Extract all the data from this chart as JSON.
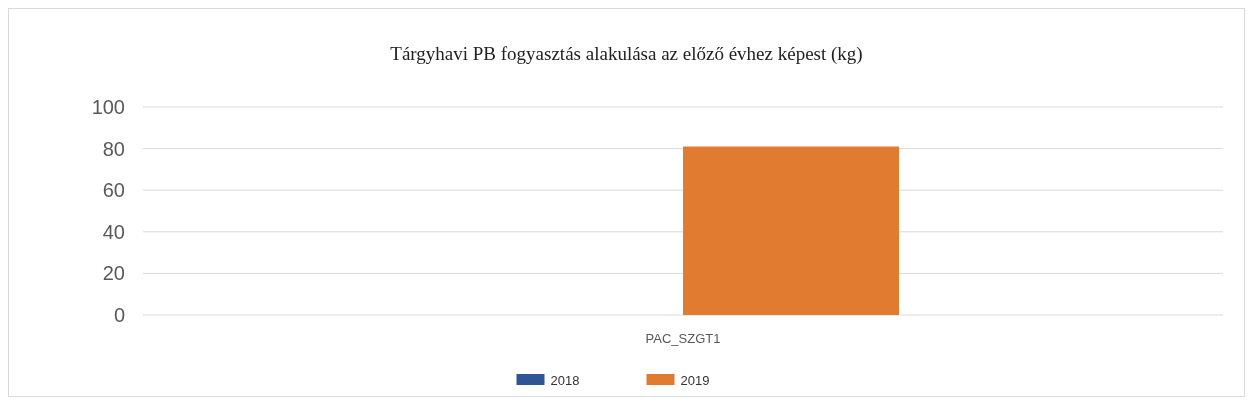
{
  "chart_data": {
    "type": "bar",
    "title": "Tárgyhavi PB fogyasztás alakulása az előző évhez képest (kg)",
    "categories": [
      "PAC_SZGT1"
    ],
    "series": [
      {
        "name": "2018",
        "color": "#2f5597",
        "values": [
          0
        ]
      },
      {
        "name": "2019",
        "color": "#e07b30",
        "values": [
          81
        ]
      }
    ],
    "ylim": [
      0,
      100
    ],
    "yticks": [
      0,
      20,
      40,
      60,
      80,
      100
    ],
    "grid": "y",
    "legend": "bottom"
  }
}
